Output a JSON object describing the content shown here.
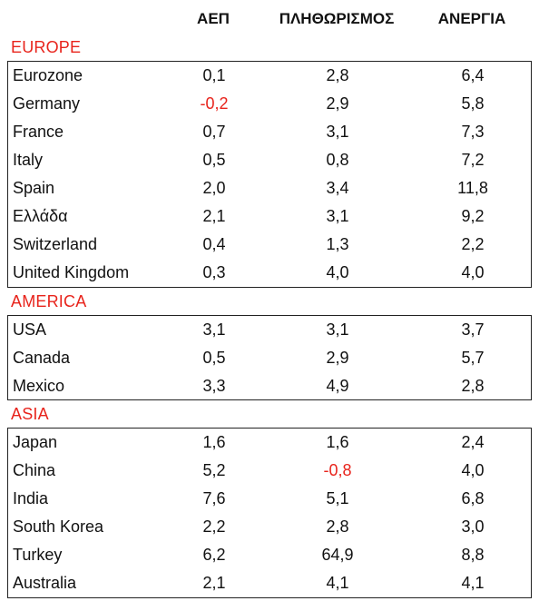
{
  "headers": {
    "gdp": "ΑΕΠ",
    "inflation": "ΠΛΗΘΩΡΙΣΜΟΣ",
    "unemployment": "ΑΝΕΡΓΙΑ"
  },
  "colors": {
    "accent_red": "#e8241c",
    "text": "#111111",
    "border": "#222222"
  },
  "sections": [
    {
      "label": "EUROPE",
      "rows": [
        {
          "name": "Eurozone",
          "gdp": "0,1",
          "inflation": "2,8",
          "unemployment": "6,4"
        },
        {
          "name": "Germany",
          "gdp": "-0,2",
          "inflation": "2,9",
          "unemployment": "5,8"
        },
        {
          "name": "France",
          "gdp": "0,7",
          "inflation": "3,1",
          "unemployment": "7,3"
        },
        {
          "name": "Italy",
          "gdp": "0,5",
          "inflation": "0,8",
          "unemployment": "7,2"
        },
        {
          "name": "Spain",
          "gdp": "2,0",
          "inflation": "3,4",
          "unemployment": "11,8"
        },
        {
          "name": "Ελλάδα",
          "gdp": "2,1",
          "inflation": "3,1",
          "unemployment": "9,2"
        },
        {
          "name": "Switzerland",
          "gdp": "0,4",
          "inflation": "1,3",
          "unemployment": "2,2"
        },
        {
          "name": "United Kingdom",
          "gdp": "0,3",
          "inflation": "4,0",
          "unemployment": "4,0"
        }
      ]
    },
    {
      "label": "AMERICA",
      "rows": [
        {
          "name": "USA",
          "gdp": "3,1",
          "inflation": "3,1",
          "unemployment": "3,7"
        },
        {
          "name": "Canada",
          "gdp": "0,5",
          "inflation": "2,9",
          "unemployment": "5,7"
        },
        {
          "name": "Mexico",
          "gdp": "3,3",
          "inflation": "4,9",
          "unemployment": "2,8"
        }
      ]
    },
    {
      "label": "ASIA",
      "rows": [
        {
          "name": "Japan",
          "gdp": "1,6",
          "inflation": "1,6",
          "unemployment": "2,4"
        },
        {
          "name": "China",
          "gdp": "5,2",
          "inflation": "-0,8",
          "unemployment": "4,0"
        },
        {
          "name": "India",
          "gdp": "7,6",
          "inflation": "5,1",
          "unemployment": "6,8"
        },
        {
          "name": "South Korea",
          "gdp": "2,2",
          "inflation": "2,8",
          "unemployment": "3,0"
        },
        {
          "name": "Turkey",
          "gdp": "6,2",
          "inflation": "64,9",
          "unemployment": "8,8"
        },
        {
          "name": "Australia",
          "gdp": "2,1",
          "inflation": "4,1",
          "unemployment": "4,1"
        }
      ]
    }
  ]
}
